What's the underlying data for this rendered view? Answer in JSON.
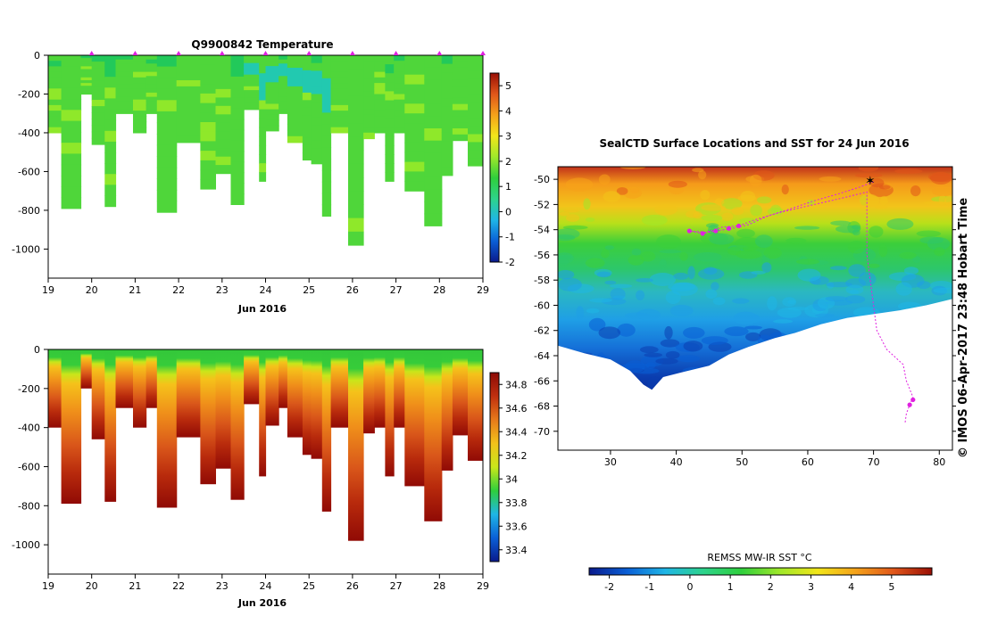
{
  "colors": {
    "temperature_stops": [
      "#0a1a8c",
      "#0a5fd6",
      "#1fb6e6",
      "#2dd38c",
      "#2fcf3c",
      "#9fe82a",
      "#f2e61a",
      "#f5a21a",
      "#e0561a",
      "#9a0f05"
    ],
    "salinity_stops": [
      "#0a1a8c",
      "#0a5fd6",
      "#1fb6e6",
      "#2fcf3c",
      "#c9e71a",
      "#f2c21a",
      "#e67a1a",
      "#c0300f",
      "#8c0a05"
    ],
    "profile_marker": "#e020e0",
    "track": "#e020e0",
    "land": "#ffffff"
  },
  "chart_data": [
    {
      "id": "temperature-section",
      "type": "heatmap",
      "title": "Q9900842  Temperature",
      "xlabel": "Jun 2016",
      "ylabel": "",
      "xlim": [
        19,
        29
      ],
      "ylim": [
        -1150,
        0
      ],
      "x_ticks": [
        "19",
        "20",
        "21",
        "22",
        "23",
        "24",
        "25",
        "26",
        "27",
        "28",
        "29"
      ],
      "y_ticks": [
        "0",
        "-200",
        "-400",
        "-600",
        "-800",
        "-1000"
      ],
      "colorbar": {
        "min": -2,
        "max": 5.5,
        "ticks": [
          "5",
          "4",
          "3",
          "2",
          "1",
          "0",
          "-1",
          "-2"
        ]
      },
      "profile_marks_x": [
        20,
        21,
        22,
        23,
        24,
        25,
        26,
        27,
        28,
        29
      ],
      "profiles": [
        {
          "x0": 19.0,
          "x1": 19.3,
          "depth": 400
        },
        {
          "x0": 19.3,
          "x1": 19.75,
          "depth": 790
        },
        {
          "x0": 19.75,
          "x1": 20.0,
          "depth": 200
        },
        {
          "x0": 20.0,
          "x1": 20.3,
          "depth": 460
        },
        {
          "x0": 20.3,
          "x1": 20.55,
          "depth": 780
        },
        {
          "x0": 20.55,
          "x1": 20.95,
          "depth": 300
        },
        {
          "x0": 20.95,
          "x1": 21.25,
          "depth": 400
        },
        {
          "x0": 21.25,
          "x1": 21.5,
          "depth": 300
        },
        {
          "x0": 21.5,
          "x1": 21.95,
          "depth": 810
        },
        {
          "x0": 21.95,
          "x1": 22.5,
          "depth": 450
        },
        {
          "x0": 22.5,
          "x1": 22.85,
          "depth": 690
        },
        {
          "x0": 22.85,
          "x1": 23.2,
          "depth": 610
        },
        {
          "x0": 23.2,
          "x1": 23.5,
          "depth": 770
        },
        {
          "x0": 23.5,
          "x1": 23.85,
          "depth": 280
        },
        {
          "x0": 23.85,
          "x1": 24.0,
          "depth": 650
        },
        {
          "x0": 24.0,
          "x1": 24.3,
          "depth": 390
        },
        {
          "x0": 24.3,
          "x1": 24.5,
          "depth": 300
        },
        {
          "x0": 24.5,
          "x1": 24.85,
          "depth": 450
        },
        {
          "x0": 24.85,
          "x1": 25.05,
          "depth": 540
        },
        {
          "x0": 25.05,
          "x1": 25.3,
          "depth": 560
        },
        {
          "x0": 25.3,
          "x1": 25.5,
          "depth": 830
        },
        {
          "x0": 25.5,
          "x1": 25.9,
          "depth": 400
        },
        {
          "x0": 25.9,
          "x1": 26.25,
          "depth": 980
        },
        {
          "x0": 26.25,
          "x1": 26.5,
          "depth": 430
        },
        {
          "x0": 26.5,
          "x1": 26.75,
          "depth": 400
        },
        {
          "x0": 26.75,
          "x1": 26.95,
          "depth": 650
        },
        {
          "x0": 26.95,
          "x1": 27.2,
          "depth": 400
        },
        {
          "x0": 27.2,
          "x1": 27.65,
          "depth": 700
        },
        {
          "x0": 27.65,
          "x1": 28.05,
          "depth": 880
        },
        {
          "x0": 28.05,
          "x1": 28.3,
          "depth": 620
        },
        {
          "x0": 28.3,
          "x1": 28.65,
          "depth": 440
        },
        {
          "x0": 28.65,
          "x1": 29.05,
          "depth": 570
        }
      ]
    },
    {
      "id": "salinity-section",
      "type": "heatmap",
      "title": "",
      "xlabel": "Jun 2016",
      "ylabel": "",
      "xlim": [
        19,
        29
      ],
      "ylim": [
        -1150,
        0
      ],
      "x_ticks": [
        "19",
        "20",
        "21",
        "22",
        "23",
        "24",
        "25",
        "26",
        "27",
        "28",
        "29"
      ],
      "y_ticks": [
        "0",
        "-200",
        "-400",
        "-600",
        "-800",
        "-1000"
      ],
      "colorbar": {
        "min": 33.3,
        "max": 34.9,
        "ticks": [
          "34.8",
          "34.6",
          "34.4",
          "34.2",
          "34",
          "33.8",
          "33.6",
          "33.4"
        ]
      }
    },
    {
      "id": "sst-map",
      "type": "heatmap",
      "title": "SealCTD Surface Locations and SST for 24 Jun 2016",
      "xlabel": "",
      "ylabel": "",
      "xlim": [
        22,
        82
      ],
      "ylim": [
        -71.5,
        -49
      ],
      "x_ticks": [
        "30",
        "40",
        "50",
        "60",
        "70",
        "80"
      ],
      "y_ticks": [
        "-50",
        "-52",
        "-54",
        "-56",
        "-58",
        "-60",
        "-62",
        "-64",
        "-66",
        "-68",
        "-70"
      ],
      "colorbar": {
        "label": "REMSS MW-IR SST °C",
        "min": -2.5,
        "max": 6,
        "ticks": [
          "-2",
          "-1",
          "0",
          "1",
          "2",
          "3",
          "4",
          "5"
        ]
      },
      "track": [
        [
          70,
          -50.2
        ],
        [
          68,
          -50.6
        ],
        [
          65,
          -51.1
        ],
        [
          61,
          -51.7
        ],
        [
          57,
          -52.4
        ],
        [
          54,
          -52.9
        ],
        [
          51,
          -53.6
        ],
        [
          48.5,
          -53.9
        ],
        [
          46,
          -54.1
        ],
        [
          44,
          -54.3
        ],
        [
          42,
          -54.1
        ],
        [
          44.5,
          -54.2
        ],
        [
          47,
          -53.8
        ],
        [
          49.5,
          -53.7
        ],
        [
          52,
          -53.2
        ],
        [
          56,
          -52.6
        ],
        [
          61,
          -52
        ],
        [
          66,
          -51.4
        ],
        [
          69,
          -51
        ],
        [
          69,
          -56
        ],
        [
          69.5,
          -58
        ],
        [
          70,
          -60
        ],
        [
          70.5,
          -62
        ],
        [
          72,
          -63.5
        ],
        [
          74.5,
          -64.7
        ],
        [
          75,
          -66
        ],
        [
          76,
          -67.3
        ],
        [
          75.5,
          -67.9
        ],
        [
          75,
          -68.6
        ],
        [
          74.8,
          -69.3
        ]
      ]
    }
  ],
  "credit": "© IMOS 06-Apr-2017 23:48 Hobart Time"
}
